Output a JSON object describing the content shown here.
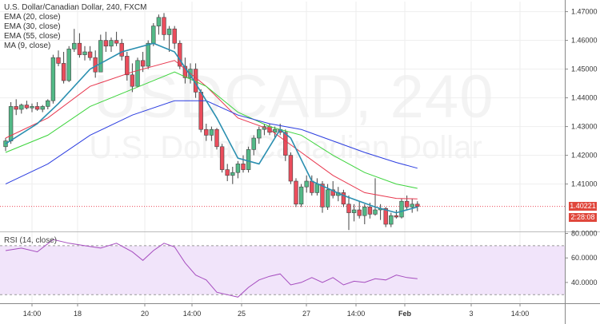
{
  "legend": {
    "title": "U.S. Dollar/Canadian Dollar, 240, FXCM",
    "ema20": "EMA (20, close)",
    "ema30": "EMA (30, close)",
    "ema55": "EMA (55, close)",
    "ma9": "MA (9, close)"
  },
  "rsi_legend": "RSI (14, close)",
  "watermark": {
    "symbol": "USDCAD, 240",
    "name": "U.S. Dollar/Canadian Dollar"
  },
  "price_tag": {
    "value": "1.40221",
    "time": "2:28:08",
    "color": "#e0473c"
  },
  "colors": {
    "up": "#53b987",
    "down": "#eb4d5c",
    "ema20": "#e8384f",
    "ema30": "#3cd43c",
    "ema55": "#2b3de0",
    "ma9": "#2a8fb0",
    "rsi": "#a64dbf",
    "rsi_band": "#f1e4fa"
  },
  "chart_data": {
    "type": "candlestick",
    "title": "U.S. Dollar/Canadian Dollar, 240, FXCM",
    "price_axis": {
      "ticks": [
        "1.47000",
        "1.46000",
        "1.45000",
        "1.44000",
        "1.43000",
        "1.42000",
        "1.41000"
      ],
      "range": [
        1.3935,
        1.4735
      ]
    },
    "time_axis": [
      "14:00",
      "18",
      "20",
      "14:00",
      "25",
      "27",
      "14:00",
      "Feb",
      "3",
      "14:00"
    ],
    "candles": [
      [
        1.423,
        1.426,
        1.4215,
        1.425
      ],
      [
        1.425,
        1.4385,
        1.424,
        1.437
      ],
      [
        1.437,
        1.4395,
        1.434,
        1.436
      ],
      [
        1.436,
        1.438,
        1.4345,
        1.4375
      ],
      [
        1.4375,
        1.439,
        1.436,
        1.4365
      ],
      [
        1.4365,
        1.438,
        1.435,
        1.437
      ],
      [
        1.437,
        1.4385,
        1.4355,
        1.436
      ],
      [
        1.436,
        1.4375,
        1.435,
        1.437
      ],
      [
        1.437,
        1.4395,
        1.436,
        1.439
      ],
      [
        1.439,
        1.455,
        1.438,
        1.454
      ],
      [
        1.454,
        1.4565,
        1.451,
        1.452
      ],
      [
        1.452,
        1.456,
        1.445,
        1.446
      ],
      [
        1.446,
        1.458,
        1.4455,
        1.457
      ],
      [
        1.457,
        1.464,
        1.456,
        1.459
      ],
      [
        1.459,
        1.4625,
        1.454,
        1.455
      ],
      [
        1.455,
        1.458,
        1.453,
        1.456
      ],
      [
        1.456,
        1.458,
        1.453,
        1.454
      ],
      [
        1.454,
        1.4565,
        1.447,
        1.449
      ],
      [
        1.449,
        1.462,
        1.449,
        1.46
      ],
      [
        1.46,
        1.463,
        1.456,
        1.458
      ],
      [
        1.458,
        1.461,
        1.456,
        1.46
      ],
      [
        1.46,
        1.463,
        1.458,
        1.459
      ],
      [
        1.459,
        1.4605,
        1.453,
        1.4545
      ],
      [
        1.4545,
        1.456,
        1.446,
        1.448
      ],
      [
        1.448,
        1.452,
        1.442,
        1.444
      ],
      [
        1.444,
        1.454,
        1.444,
        1.453
      ],
      [
        1.453,
        1.456,
        1.449,
        1.451
      ],
      [
        1.451,
        1.46,
        1.45,
        1.459
      ],
      [
        1.459,
        1.466,
        1.458,
        1.465
      ],
      [
        1.465,
        1.469,
        1.462,
        1.468
      ],
      [
        1.468,
        1.4695,
        1.46,
        1.462
      ],
      [
        1.462,
        1.465,
        1.456,
        1.464
      ],
      [
        1.464,
        1.465,
        1.457,
        1.459
      ],
      [
        1.459,
        1.46,
        1.45,
        1.451
      ],
      [
        1.451,
        1.454,
        1.445,
        1.447
      ],
      [
        1.447,
        1.452,
        1.445,
        1.45
      ],
      [
        1.45,
        1.452,
        1.44,
        1.442
      ],
      [
        1.442,
        1.443,
        1.428,
        1.429
      ],
      [
        1.429,
        1.431,
        1.425,
        1.427
      ],
      [
        1.427,
        1.43,
        1.425,
        1.429
      ],
      [
        1.429,
        1.4295,
        1.422,
        1.423
      ],
      [
        1.423,
        1.424,
        1.414,
        1.415
      ],
      [
        1.415,
        1.417,
        1.411,
        1.413
      ],
      [
        1.413,
        1.416,
        1.41,
        1.414
      ],
      [
        1.414,
        1.418,
        1.412,
        1.417
      ],
      [
        1.417,
        1.42,
        1.414,
        1.415
      ],
      [
        1.415,
        1.423,
        1.414,
        1.422
      ],
      [
        1.422,
        1.427,
        1.42,
        1.426
      ],
      [
        1.426,
        1.43,
        1.424,
        1.429
      ],
      [
        1.429,
        1.431,
        1.427,
        1.43
      ],
      [
        1.43,
        1.431,
        1.427,
        1.428
      ],
      [
        1.428,
        1.43,
        1.426,
        1.429
      ],
      [
        1.429,
        1.431,
        1.427,
        1.428
      ],
      [
        1.428,
        1.429,
        1.418,
        1.42
      ],
      [
        1.42,
        1.421,
        1.41,
        1.411
      ],
      [
        1.411,
        1.412,
        1.402,
        1.403
      ],
      [
        1.403,
        1.41,
        1.402,
        1.409
      ],
      [
        1.409,
        1.413,
        1.407,
        1.411
      ],
      [
        1.411,
        1.413,
        1.406,
        1.407
      ],
      [
        1.407,
        1.412,
        1.406,
        1.41
      ],
      [
        1.41,
        1.411,
        1.4,
        1.402
      ],
      [
        1.402,
        1.41,
        1.401,
        1.408
      ],
      [
        1.408,
        1.411,
        1.405,
        1.406
      ],
      [
        1.406,
        1.409,
        1.404,
        1.407
      ],
      [
        1.407,
        1.408,
        1.402,
        1.403
      ],
      [
        1.403,
        1.406,
        1.394,
        1.4
      ],
      [
        1.4,
        1.403,
        1.397,
        1.401
      ],
      [
        1.401,
        1.404,
        1.398,
        1.399
      ],
      [
        1.399,
        1.403,
        1.396,
        1.402
      ],
      [
        1.402,
        1.4035,
        1.398,
        1.3995
      ],
      [
        1.3995,
        1.412,
        1.399,
        1.401
      ],
      [
        1.401,
        1.403,
        1.3975,
        1.4015
      ],
      [
        1.4015,
        1.402,
        1.395,
        1.396
      ],
      [
        1.396,
        1.4,
        1.395,
        1.399
      ],
      [
        1.399,
        1.401,
        1.398,
        1.3985
      ],
      [
        1.3985,
        1.405,
        1.398,
        1.404
      ],
      [
        1.404,
        1.406,
        1.401,
        1.402
      ],
      [
        1.402,
        1.405,
        1.4,
        1.403
      ],
      [
        1.403,
        1.404,
        1.4005,
        1.4022
      ]
    ],
    "series": [
      {
        "name": "EMA (20, close)",
        "points": [
          [
            0,
            1.426
          ],
          [
            8,
            1.433
          ],
          [
            16,
            1.444
          ],
          [
            24,
            1.449
          ],
          [
            32,
            1.453
          ],
          [
            38,
            1.444
          ],
          [
            44,
            1.433
          ],
          [
            50,
            1.429
          ],
          [
            56,
            1.421
          ],
          [
            62,
            1.413
          ],
          [
            68,
            1.407
          ],
          [
            74,
            1.405
          ],
          [
            78,
            1.4048
          ]
        ]
      },
      {
        "name": "EMA (30, close)",
        "points": [
          [
            0,
            1.421
          ],
          [
            8,
            1.427
          ],
          [
            16,
            1.437
          ],
          [
            24,
            1.443
          ],
          [
            32,
            1.449
          ],
          [
            38,
            1.444
          ],
          [
            44,
            1.435
          ],
          [
            50,
            1.43
          ],
          [
            56,
            1.427
          ],
          [
            62,
            1.42
          ],
          [
            68,
            1.414
          ],
          [
            74,
            1.41
          ],
          [
            78,
            1.4085
          ]
        ]
      },
      {
        "name": "EMA (55, close)",
        "points": [
          [
            0,
            1.41
          ],
          [
            8,
            1.417
          ],
          [
            16,
            1.427
          ],
          [
            24,
            1.434
          ],
          [
            32,
            1.439
          ],
          [
            38,
            1.439
          ],
          [
            44,
            1.434
          ],
          [
            50,
            1.431
          ],
          [
            56,
            1.429
          ],
          [
            62,
            1.425
          ],
          [
            68,
            1.421
          ],
          [
            74,
            1.4175
          ],
          [
            78,
            1.4155
          ]
        ]
      },
      {
        "name": "MA (9, close)",
        "points": [
          [
            0,
            1.424
          ],
          [
            6,
            1.431
          ],
          [
            10,
            1.438
          ],
          [
            16,
            1.45
          ],
          [
            22,
            1.456
          ],
          [
            28,
            1.459
          ],
          [
            32,
            1.456
          ],
          [
            36,
            1.445
          ],
          [
            40,
            1.433
          ],
          [
            44,
            1.419
          ],
          [
            48,
            1.417
          ],
          [
            52,
            1.429
          ],
          [
            54,
            1.426
          ],
          [
            58,
            1.411
          ],
          [
            64,
            1.406
          ],
          [
            70,
            1.402
          ],
          [
            74,
            1.4
          ],
          [
            78,
            1.402
          ]
        ]
      }
    ],
    "rsi": {
      "label": "RSI (14, close)",
      "ticks": [
        "80.0000",
        "60.0000",
        "40.0000"
      ],
      "range": [
        23,
        81
      ],
      "band": [
        30,
        70
      ],
      "values": [
        [
          0,
          66
        ],
        [
          3,
          68
        ],
        [
          6,
          65
        ],
        [
          9,
          75
        ],
        [
          12,
          72
        ],
        [
          15,
          70
        ],
        [
          18,
          68
        ],
        [
          21,
          72
        ],
        [
          24,
          65
        ],
        [
          26,
          58
        ],
        [
          28,
          66
        ],
        [
          30,
          72
        ],
        [
          32,
          69
        ],
        [
          34,
          56
        ],
        [
          36,
          46
        ],
        [
          38,
          42
        ],
        [
          40,
          32
        ],
        [
          42,
          30
        ],
        [
          44,
          28
        ],
        [
          46,
          36
        ],
        [
          48,
          42
        ],
        [
          50,
          45
        ],
        [
          52,
          47
        ],
        [
          54,
          38
        ],
        [
          56,
          40
        ],
        [
          58,
          44
        ],
        [
          60,
          40
        ],
        [
          62,
          44
        ],
        [
          64,
          38
        ],
        [
          66,
          41
        ],
        [
          68,
          40
        ],
        [
          70,
          43
        ],
        [
          72,
          42
        ],
        [
          74,
          46
        ],
        [
          76,
          44
        ],
        [
          78,
          43
        ]
      ]
    }
  }
}
